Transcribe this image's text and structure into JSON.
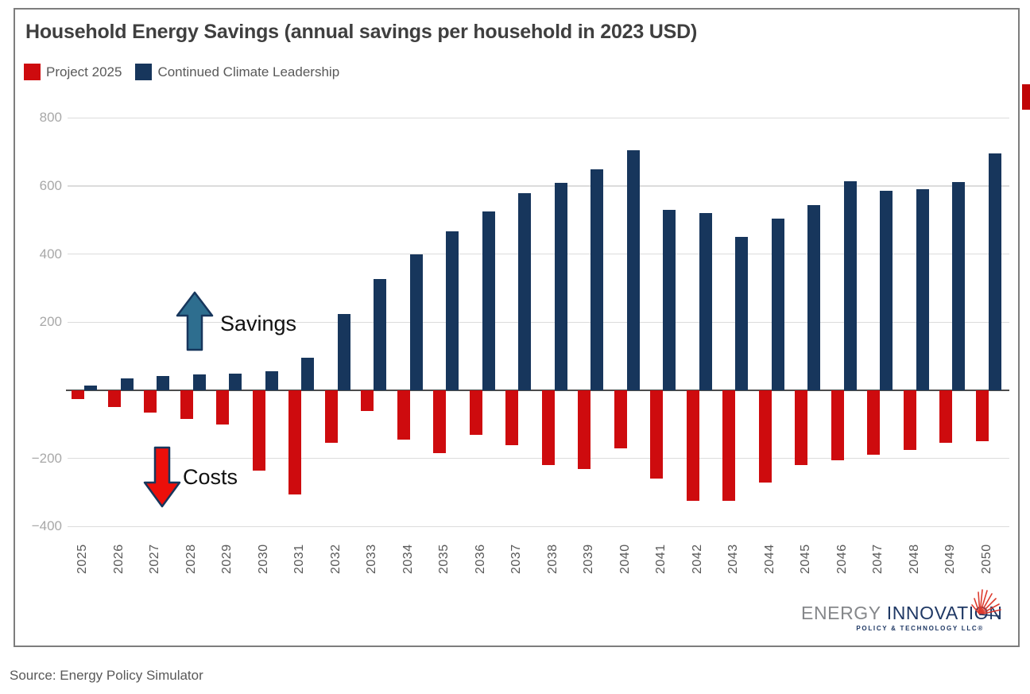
{
  "title": "Household Energy Savings (annual savings per household in 2023 USD)",
  "annotations": {
    "savings": "Savings",
    "costs": "Costs"
  },
  "source": "Source: Energy Policy Simulator",
  "logo": {
    "part1": "ENERGY",
    "part2": "INNOVATION",
    "subtitle": "POLICY & TECHNOLOGY LLC®"
  },
  "colors": {
    "project_2025": "#ce0b0e",
    "continued_climate_leadership": "#17365c",
    "savings_arrow_fill": "#2e6e8f",
    "costs_arrow_fill": "#ec0f0a",
    "arrow_outline": "#17365c",
    "gridline": "#dcdcdc",
    "zero_axis": "#4d4d4d"
  },
  "chart_data": {
    "type": "bar",
    "title": "Household Energy Savings (annual savings per household in 2023 USD)",
    "categories": [
      2025,
      2026,
      2027,
      2028,
      2029,
      2030,
      2031,
      2032,
      2033,
      2034,
      2035,
      2036,
      2037,
      2038,
      2039,
      2040,
      2041,
      2042,
      2043,
      2044,
      2045,
      2046,
      2047,
      2048,
      2049,
      2050
    ],
    "series": [
      {
        "name": "Project 2025",
        "color": "#ce0b0e",
        "values": [
          -25,
          -50,
          -65,
          -85,
          -100,
          -235,
          -305,
          -155,
          -60,
          -145,
          -185,
          -130,
          -160,
          -220,
          -230,
          -170,
          -260,
          -325,
          -325,
          -270,
          -220,
          -205,
          -190,
          -175,
          -155,
          -150
        ]
      },
      {
        "name": "Continued Climate Leadership",
        "color": "#17365c",
        "values": [
          15,
          35,
          42,
          46,
          50,
          56,
          96,
          225,
          327,
          400,
          468,
          525,
          580,
          610,
          650,
          705,
          530,
          520,
          450,
          505,
          545,
          615,
          585,
          590,
          612,
          695
        ]
      }
    ],
    "xlabel": "",
    "ylabel": "",
    "ylim": [
      -400,
      800
    ],
    "yticks": [
      800,
      600,
      400,
      200,
      -200,
      -400
    ],
    "grid": true,
    "legend_position": "top-left"
  }
}
